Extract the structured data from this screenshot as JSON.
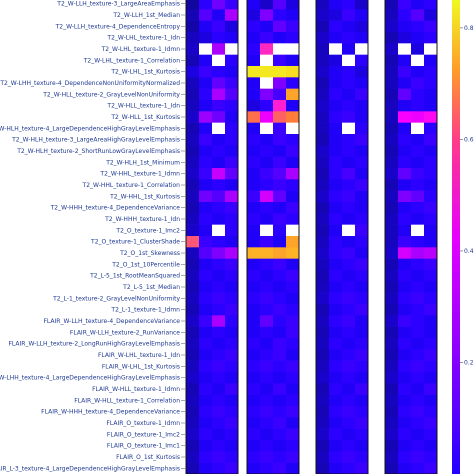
{
  "chart_data": {
    "type": "heatmap",
    "title": "",
    "xlabel": "",
    "ylabel": "",
    "colorscale": [
      "#0d0887",
      "#2200ff",
      "#6b00ff",
      "#b800ff",
      "#ff00ff",
      "#ff3aa8",
      "#ff7a3a",
      "#ffc21f",
      "#f0f921"
    ],
    "missing_color": "#ffffff",
    "color_range": [
      0,
      0.85
    ],
    "colorbar_ticks": [
      "0.8",
      "0.6",
      "0.4",
      "0.2"
    ],
    "colorbar_tick_values": [
      0.8,
      0.6,
      0.4,
      0.2
    ],
    "column_groups": [
      {
        "name": "",
        "columns": 4
      },
      {
        "name": "",
        "columns": 4
      },
      {
        "name": "",
        "columns": 4
      },
      {
        "name": "",
        "columns": 4
      }
    ],
    "rows": [
      "T2_W-LLH_texture-3_LargeAreaEmphasis",
      "T2_W-LLH_1st_Median",
      "T2_W-LLH_texture-4_DependenceEntropy",
      "T2_W-LHL_texture-1_Idn",
      "T2_W-LHL_texture-1_Idmn",
      "T2_W-LHL_texture-1_Correlation",
      "T2_W-LHL_1st_Kurtosis",
      "T2_W-LHH_texture-4_DependenceNonUniformityNormalized",
      "T2_W-HLL_texture-2_GrayLevelNonUniformity",
      "T2_W-HLL_texture-1_Idn",
      "T2_W-HLL_1st_Kurtosis",
      "T2_W-HLH_texture-4_LargeDependenceHighGrayLevelEmphasis",
      "T2_W-HLH_texture-3_LargeAreaHighGrayLevelEmphasis",
      "T2_W-HLH_texture-2_ShortRunLowGrayLevelEmphasis",
      "T2_W-HLH_1st_Minimum",
      "T2_W-HHL_texture-1_Idmn",
      "T2_W-HHL_texture-1_Correlation",
      "T2_W-HHL_1st_Kurtosis",
      "T2_W-HHH_texture-4_DependenceVariance",
      "T2_W-HHH_texture-1_Idn",
      "T2_O_texture-1_Imc2",
      "T2_O_texture-1_ClusterShade",
      "T2_O_1st_Skewness",
      "T2_O_1st_10Percentile",
      "T2_L-5_1st_RootMeanSquared",
      "T2_L-5_1st_Median",
      "T2_L-1_texture-2_GrayLevelNonUniformity",
      "T2_L-1_texture-1_Idmn",
      "FLAIR_W-LLH_texture-4_DependenceVariance",
      "FLAIR_W-LLH_texture-2_RunVariance",
      "FLAIR_W-LLH_texture-2_LongRunHighGrayLevelEmphasis",
      "FLAIR_W-LHL_texture-1_Idn",
      "FLAIR_W-LHL_1st_Kurtosis",
      "FLAIR_W-LHH_texture-4_LargeDependenceHighGrayLevelEmphasis",
      "FLAIR_W-HLL_texture-1_Idmn",
      "FLAIR_W-HLL_texture-1_Correlation",
      "FLAIR_W-HHH_texture-4_DependenceVariance",
      "FLAIR_O_texture-1_Idmn",
      "FLAIR_O_texture-1_Imc2",
      "FLAIR_O_texture-1_Imc1",
      "FLAIR_O_1st_Kurtosis",
      "FLAIR_L-3_texture-4_LargeDependenceHighGrayLevelEmphasis"
    ],
    "values": [
      [
        0.02,
        0.12,
        0.22,
        0.14,
        0.1,
        0.06,
        0.18,
        0.08,
        0.05,
        0.1,
        0.12,
        0.06,
        0.04,
        0.14,
        0.1,
        0.12
      ],
      [
        0.04,
        0.18,
        0.1,
        0.3,
        0.08,
        0.24,
        0.12,
        0.1,
        0.06,
        0.08,
        0.14,
        0.1,
        0.05,
        0.12,
        0.18,
        0.08
      ],
      [
        0.03,
        0.1,
        0.14,
        0.08,
        0.12,
        0.1,
        0.2,
        0.14,
        0.04,
        0.12,
        0.1,
        0.08,
        0.06,
        0.1,
        0.12,
        0.14
      ],
      [
        0.05,
        0.08,
        0.12,
        0.1,
        0.1,
        0.14,
        0.1,
        0.12,
        0.06,
        0.1,
        0.12,
        0.1,
        0.04,
        0.08,
        0.1,
        0.12
      ],
      [
        0.06,
        null,
        0.3,
        null,
        0.12,
        0.5,
        null,
        null,
        0.05,
        null,
        0.1,
        null,
        0.06,
        null,
        0.08,
        null
      ],
      [
        0.04,
        0.1,
        null,
        0.12,
        0.1,
        null,
        0.14,
        0.1,
        0.05,
        0.08,
        null,
        0.12,
        0.04,
        0.1,
        null,
        0.1
      ],
      [
        0.08,
        0.14,
        0.12,
        0.1,
        0.82,
        0.82,
        0.82,
        0.8,
        0.06,
        0.1,
        0.12,
        0.08,
        0.05,
        0.14,
        0.1,
        0.12
      ],
      [
        0.05,
        0.1,
        0.2,
        0.14,
        0.1,
        null,
        0.24,
        0.12,
        0.04,
        0.1,
        0.12,
        0.1,
        0.05,
        0.1,
        0.14,
        0.12
      ],
      [
        0.04,
        0.12,
        0.3,
        0.18,
        0.1,
        0.24,
        0.16,
        0.7,
        0.05,
        0.12,
        0.1,
        0.14,
        0.04,
        0.2,
        0.12,
        0.1
      ],
      [
        0.05,
        0.1,
        0.14,
        0.12,
        0.08,
        0.12,
        0.48,
        0.1,
        0.06,
        0.1,
        0.12,
        0.1,
        0.05,
        0.1,
        0.12,
        0.1
      ],
      [
        0.06,
        0.28,
        0.22,
        0.1,
        0.62,
        0.4,
        0.6,
        0.64,
        0.05,
        0.12,
        0.14,
        0.1,
        0.05,
        0.42,
        0.4,
        0.44
      ],
      [
        0.04,
        0.1,
        null,
        0.12,
        0.1,
        null,
        0.14,
        null,
        0.05,
        0.1,
        null,
        0.12,
        0.04,
        0.1,
        null,
        0.12
      ],
      [
        0.05,
        0.14,
        0.1,
        0.12,
        0.12,
        0.1,
        0.14,
        0.12,
        0.04,
        0.1,
        0.12,
        0.14,
        0.05,
        0.12,
        0.1,
        0.14
      ],
      [
        0.04,
        0.1,
        0.12,
        0.1,
        0.1,
        0.12,
        0.1,
        0.14,
        0.06,
        0.1,
        0.12,
        0.1,
        0.04,
        0.1,
        0.12,
        0.1
      ],
      [
        0.05,
        0.12,
        0.1,
        0.14,
        0.12,
        0.1,
        0.14,
        0.1,
        0.05,
        0.12,
        0.1,
        0.12,
        0.05,
        0.12,
        0.1,
        0.12
      ],
      [
        0.06,
        0.14,
        0.34,
        0.2,
        0.1,
        0.14,
        0.18,
        0.3,
        0.04,
        0.12,
        0.16,
        0.1,
        0.06,
        0.2,
        0.14,
        0.12
      ],
      [
        0.04,
        0.1,
        0.12,
        0.1,
        0.1,
        0.12,
        0.14,
        0.12,
        0.05,
        0.1,
        0.12,
        0.14,
        0.04,
        0.1,
        0.12,
        0.1
      ],
      [
        0.05,
        0.22,
        0.18,
        0.3,
        0.14,
        0.36,
        0.2,
        0.1,
        0.06,
        0.12,
        0.14,
        0.1,
        0.05,
        0.24,
        0.2,
        0.12
      ],
      [
        0.04,
        0.1,
        0.12,
        0.14,
        0.1,
        0.12,
        0.1,
        0.14,
        0.04,
        0.1,
        0.12,
        0.1,
        0.04,
        0.1,
        0.12,
        0.14
      ],
      [
        0.05,
        0.12,
        0.1,
        0.12,
        0.12,
        0.1,
        0.14,
        0.12,
        0.05,
        0.12,
        0.1,
        0.12,
        0.05,
        0.12,
        0.1,
        0.12
      ],
      [
        0.06,
        0.1,
        null,
        0.12,
        0.1,
        null,
        0.12,
        null,
        0.04,
        0.1,
        null,
        0.14,
        0.05,
        0.1,
        null,
        0.1
      ],
      [
        0.58,
        0.14,
        0.12,
        0.1,
        0.1,
        0.14,
        0.1,
        0.7,
        0.05,
        0.12,
        0.1,
        0.12,
        0.05,
        0.14,
        0.12,
        0.1
      ],
      [
        0.05,
        0.18,
        0.24,
        0.3,
        0.72,
        0.72,
        0.7,
        0.72,
        0.06,
        0.12,
        0.14,
        0.1,
        0.06,
        0.36,
        0.3,
        0.32
      ],
      [
        0.04,
        0.1,
        0.12,
        0.14,
        0.1,
        0.12,
        0.14,
        0.1,
        0.05,
        0.1,
        0.12,
        0.14,
        0.04,
        0.1,
        0.12,
        0.14
      ],
      [
        0.05,
        0.12,
        0.1,
        0.12,
        0.12,
        0.1,
        0.12,
        0.14,
        0.04,
        0.12,
        0.1,
        0.12,
        0.05,
        0.12,
        0.1,
        0.12
      ],
      [
        0.04,
        0.1,
        0.12,
        0.1,
        0.1,
        0.12,
        0.1,
        0.12,
        0.05,
        0.1,
        0.12,
        0.1,
        0.04,
        0.1,
        0.12,
        0.1
      ],
      [
        0.05,
        0.12,
        0.14,
        0.12,
        0.12,
        0.14,
        0.12,
        0.1,
        0.06,
        0.12,
        0.14,
        0.12,
        0.05,
        0.12,
        0.14,
        0.12
      ],
      [
        0.04,
        0.1,
        0.12,
        0.14,
        0.1,
        0.12,
        0.14,
        0.12,
        0.04,
        0.1,
        0.12,
        0.14,
        0.04,
        0.1,
        0.12,
        0.14
      ],
      [
        0.06,
        0.14,
        0.3,
        0.12,
        0.1,
        0.2,
        0.12,
        0.14,
        0.05,
        0.12,
        0.14,
        0.1,
        0.06,
        0.14,
        0.12,
        0.1
      ],
      [
        0.04,
        0.1,
        0.12,
        0.1,
        0.1,
        0.12,
        0.1,
        0.14,
        0.04,
        0.1,
        0.12,
        0.1,
        0.04,
        0.1,
        0.12,
        0.1
      ],
      [
        0.05,
        0.12,
        0.1,
        0.12,
        0.12,
        0.1,
        0.14,
        0.12,
        0.05,
        0.12,
        0.1,
        0.12,
        0.05,
        0.12,
        0.1,
        0.12
      ],
      [
        0.04,
        0.1,
        0.12,
        0.14,
        0.1,
        0.12,
        0.14,
        0.1,
        0.04,
        0.1,
        0.12,
        0.14,
        0.04,
        0.1,
        0.12,
        0.14
      ],
      [
        0.05,
        0.12,
        0.14,
        0.12,
        0.12,
        0.14,
        0.12,
        0.14,
        0.05,
        0.12,
        0.14,
        0.12,
        0.05,
        0.12,
        0.14,
        0.12
      ],
      [
        0.06,
        0.1,
        0.12,
        0.1,
        0.1,
        0.12,
        0.1,
        0.12,
        0.06,
        0.1,
        0.12,
        0.1,
        0.06,
        0.1,
        0.12,
        0.1
      ],
      [
        0.04,
        0.12,
        0.1,
        0.14,
        0.12,
        0.1,
        0.14,
        0.1,
        0.04,
        0.12,
        0.1,
        0.14,
        0.04,
        0.12,
        0.1,
        0.14
      ],
      [
        0.05,
        0.1,
        0.12,
        0.1,
        0.1,
        0.12,
        0.1,
        0.12,
        0.05,
        0.1,
        0.12,
        0.1,
        0.05,
        0.1,
        0.12,
        0.1
      ],
      [
        0.04,
        0.12,
        0.14,
        0.12,
        0.12,
        0.14,
        0.12,
        0.14,
        0.04,
        0.12,
        0.14,
        0.12,
        0.04,
        0.12,
        0.14,
        0.12
      ],
      [
        0.05,
        0.1,
        0.12,
        0.14,
        0.1,
        0.12,
        0.14,
        0.1,
        0.05,
        0.1,
        0.12,
        0.14,
        0.05,
        0.1,
        0.12,
        0.14
      ],
      [
        0.06,
        0.12,
        0.1,
        0.12,
        0.12,
        0.1,
        0.12,
        0.14,
        0.06,
        0.12,
        0.1,
        0.12,
        0.06,
        0.12,
        0.1,
        0.12
      ],
      [
        0.04,
        0.1,
        0.12,
        0.1,
        0.1,
        0.12,
        0.1,
        0.12,
        0.04,
        0.1,
        0.12,
        0.1,
        0.04,
        0.1,
        0.12,
        0.1
      ],
      [
        0.05,
        0.12,
        0.14,
        0.12,
        0.12,
        0.14,
        0.12,
        0.14,
        0.05,
        0.12,
        0.14,
        0.12,
        0.05,
        0.12,
        0.14,
        0.12
      ],
      [
        0.04,
        0.1,
        0.12,
        0.14,
        0.1,
        0.12,
        0.14,
        0.1,
        0.04,
        0.1,
        0.12,
        0.14,
        0.04,
        0.1,
        0.12,
        0.14
      ]
    ]
  }
}
